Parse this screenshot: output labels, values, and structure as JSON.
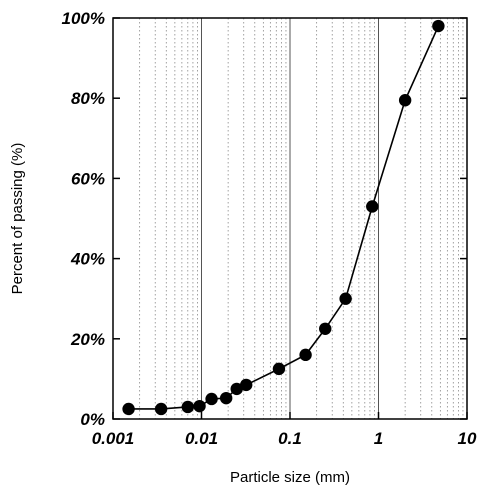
{
  "chart_data": {
    "type": "line",
    "title": "",
    "xlabel": "Particle size (mm)",
    "ylabel": "Percent of passing (%)",
    "x_scale": "log",
    "xlim": [
      0.001,
      10
    ],
    "ylim": [
      0,
      100
    ],
    "x_ticks": [
      0.001,
      0.01,
      0.1,
      1,
      10
    ],
    "x_tick_labels": [
      "0.001",
      "0.01",
      "0.1",
      "1",
      "10"
    ],
    "y_ticks": [
      0,
      20,
      40,
      60,
      80,
      100
    ],
    "y_tick_labels": [
      "0%",
      "20%",
      "40%",
      "60%",
      "80%",
      "100%"
    ],
    "grid": true,
    "marker": "filled-circle",
    "line_color": "#000000",
    "series": [
      {
        "x": [
          0.0015,
          0.0035,
          0.007,
          0.0095,
          0.013,
          0.019,
          0.025,
          0.032,
          0.075,
          0.15,
          0.25,
          0.425,
          0.85,
          2.0,
          4.75
        ],
        "y": [
          2.5,
          2.5,
          3.0,
          3.2,
          5.0,
          5.2,
          7.5,
          8.5,
          12.5,
          16.0,
          22.5,
          30.0,
          53.0,
          79.5,
          98.0
        ]
      }
    ]
  }
}
